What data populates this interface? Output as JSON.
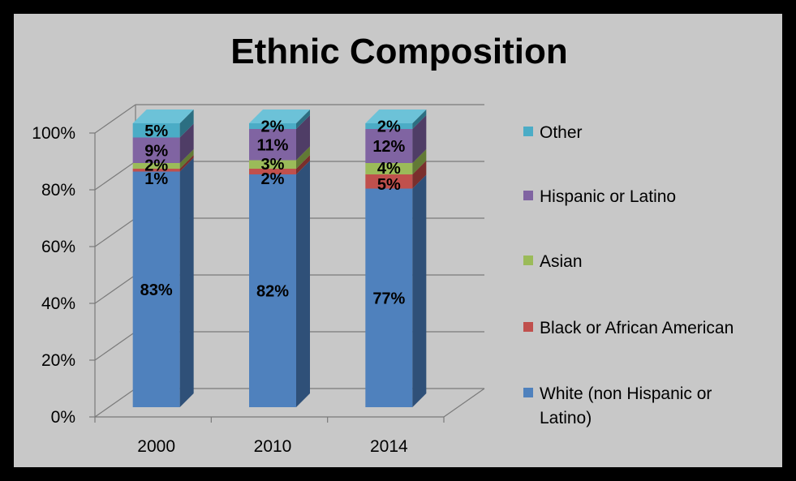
{
  "chart_data": {
    "type": "bar",
    "stacked": true,
    "three_d": true,
    "title": "Ethnic Composition",
    "categories": [
      "2000",
      "2010",
      "2014"
    ],
    "y_ticks": [
      "0%",
      "20%",
      "40%",
      "60%",
      "80%",
      "100%"
    ],
    "ylim": [
      0,
      100
    ],
    "grid": true,
    "legend_position": "right",
    "series": [
      {
        "name": "White (non Hispanic or Latino)",
        "legend_lines": [
          "White (non Hispanic or",
          "Latino)"
        ],
        "values": [
          83,
          82,
          77
        ],
        "labels": [
          "83%",
          "82%",
          "77%"
        ],
        "color": "#4f81bd",
        "side_color": "#2f5078",
        "top_color": "#6a97cf"
      },
      {
        "name": "Black or African American",
        "legend_lines": [
          "Black or African American"
        ],
        "values": [
          1,
          2,
          5
        ],
        "labels": [
          "1%",
          "2%",
          "5%"
        ],
        "color": "#c0504d",
        "side_color": "#7a2f2d",
        "top_color": "#d06a67"
      },
      {
        "name": "Asian",
        "legend_lines": [
          "Asian"
        ],
        "values": [
          2,
          3,
          4
        ],
        "labels": [
          "2%",
          "3%",
          "4%"
        ],
        "color": "#9bbb59",
        "side_color": "#627a35",
        "top_color": "#b0cc73"
      },
      {
        "name": "Hispanic or Latino",
        "legend_lines": [
          "Hispanic or Latino"
        ],
        "values": [
          9,
          11,
          12
        ],
        "labels": [
          "9%",
          "11%",
          "12%"
        ],
        "color": "#8064a2",
        "side_color": "#4f3d66",
        "top_color": "#9a80bb"
      },
      {
        "name": "Other",
        "legend_lines": [
          "Other"
        ],
        "values": [
          5,
          2,
          2
        ],
        "labels": [
          "5%",
          "2%",
          "2%"
        ],
        "color": "#4bacc6",
        "side_color": "#2c6f82",
        "top_color": "#6cc2d8"
      }
    ]
  }
}
